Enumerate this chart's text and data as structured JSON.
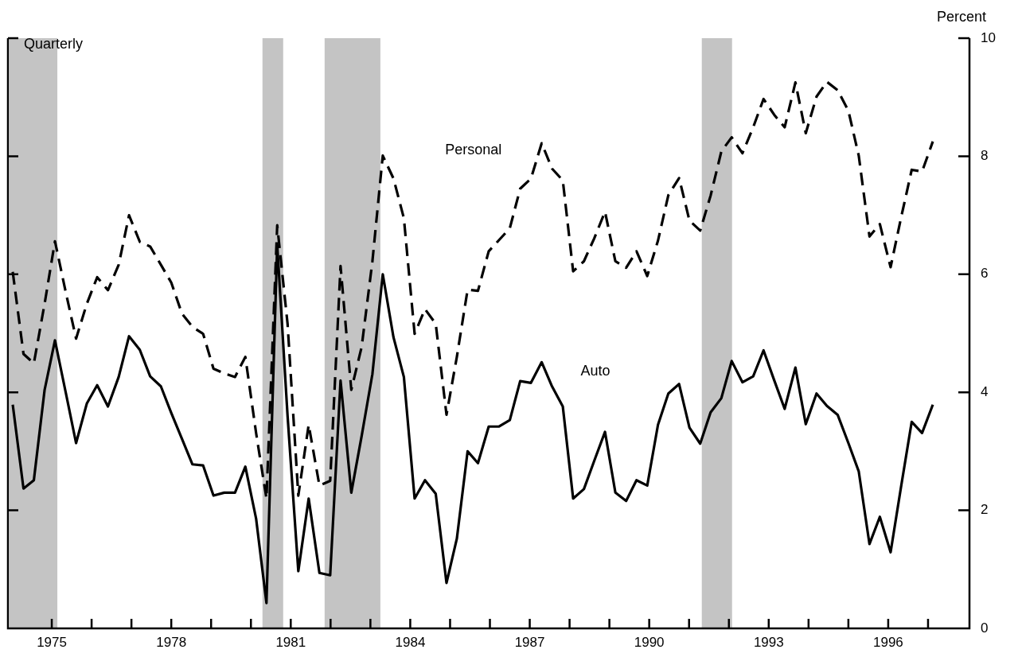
{
  "chart_data": {
    "type": "line",
    "annotations": [
      "Quarterly"
    ],
    "ylabel": "Percent",
    "tick_labels": "xy",
    "grid": false,
    "legend": false,
    "marker": "none",
    "x": [
      1974.02,
      1974.29,
      1974.55,
      1974.82,
      1975.08,
      1975.35,
      1975.61,
      1975.88,
      1976.14,
      1976.41,
      1976.68,
      1976.94,
      1977.21,
      1977.47,
      1977.74,
      1978.0,
      1978.27,
      1978.53,
      1978.8,
      1979.06,
      1979.33,
      1979.6,
      1979.86,
      1980.13,
      1980.39,
      1980.66,
      1980.92,
      1981.19,
      1981.45,
      1981.72,
      1981.99,
      1982.25,
      1982.52,
      1982.78,
      1983.05,
      1983.31,
      1983.58,
      1983.84,
      1984.11,
      1984.37,
      1984.64,
      1984.91,
      1985.17,
      1985.44,
      1985.7,
      1985.97,
      1986.23,
      1986.5,
      1986.76,
      1987.03,
      1987.3,
      1987.56,
      1987.83,
      1988.09,
      1988.36,
      1988.62,
      1988.89,
      1989.15,
      1989.42,
      1989.68,
      1989.95,
      1990.22,
      1990.48,
      1990.75,
      1991.01,
      1991.28,
      1991.54,
      1991.81,
      1992.07,
      1992.34,
      1992.61,
      1992.87,
      1993.14,
      1993.4,
      1993.67,
      1993.93,
      1994.2,
      1994.46,
      1994.73,
      1995.0,
      1995.26,
      1995.53,
      1995.79,
      1996.06,
      1996.32,
      1996.59,
      1996.85,
      1997.12
    ],
    "xlim": [
      1973.9,
      1998.04
    ],
    "xticks": [
      1975,
      {
        "value": 1976,
        "label": null
      },
      {
        "value": 1977,
        "label": null
      },
      1978,
      {
        "value": 1979,
        "label": null
      },
      {
        "value": 1980,
        "label": null
      },
      1981,
      {
        "value": 1982,
        "label": null
      },
      {
        "value": 1983,
        "label": null
      },
      1984,
      {
        "value": 1985,
        "label": null
      },
      {
        "value": 1986,
        "label": null
      },
      1987,
      {
        "value": 1988,
        "label": null
      },
      {
        "value": 1989,
        "label": null
      },
      1990,
      {
        "value": 1991,
        "label": null
      },
      {
        "value": 1992,
        "label": null
      },
      1993,
      {
        "value": 1994,
        "label": null
      },
      {
        "value": 1995,
        "label": null
      },
      1996,
      {
        "value": 1997,
        "label": null
      }
    ],
    "ylim": [
      0,
      10
    ],
    "yticks": [
      0,
      2,
      4,
      6,
      8,
      10
    ],
    "bands": [
      {
        "axis": "x",
        "from": 1973.94,
        "to": 1975.14,
        "color": "#c4c4c4"
      },
      {
        "axis": "x",
        "from": 1980.29,
        "to": 1980.81,
        "color": "#c4c4c4"
      },
      {
        "axis": "x",
        "from": 1981.85,
        "to": 1983.25,
        "color": "#c4c4c4"
      },
      {
        "axis": "x",
        "from": 1991.32,
        "to": 1992.08,
        "color": "#c4c4c4"
      }
    ],
    "series": [
      {
        "name": "Personal",
        "color": "#000000",
        "line_style": "dashed",
        "values": [
          6.04,
          4.65,
          4.49,
          5.5,
          6.56,
          5.7,
          4.91,
          5.5,
          5.95,
          5.73,
          6.16,
          7.0,
          6.55,
          6.47,
          6.16,
          5.86,
          5.33,
          5.11,
          4.99,
          4.4,
          4.32,
          4.26,
          4.6,
          3.31,
          2.2,
          6.83,
          5.16,
          2.25,
          3.45,
          2.42,
          2.5,
          6.14,
          4.04,
          4.77,
          6.22,
          8.01,
          7.62,
          6.95,
          4.99,
          5.41,
          5.16,
          3.62,
          4.6,
          5.74,
          5.72,
          6.39,
          6.58,
          6.78,
          7.45,
          7.62,
          8.22,
          7.79,
          7.59,
          6.05,
          6.22,
          6.61,
          7.06,
          6.22,
          6.11,
          6.39,
          5.97,
          6.57,
          7.34,
          7.63,
          6.91,
          6.74,
          7.33,
          8.08,
          8.32,
          8.05,
          8.49,
          8.97,
          8.7,
          8.49,
          9.25,
          8.39,
          9.01,
          9.26,
          9.12,
          8.77,
          8.01,
          6.64,
          6.85,
          6.12,
          6.95,
          7.77,
          7.74,
          8.25
        ]
      },
      {
        "name": "Auto",
        "color": "#000000",
        "line_style": "solid",
        "values": [
          3.79,
          2.37,
          2.51,
          4.04,
          4.88,
          4.0,
          3.14,
          3.81,
          4.12,
          3.76,
          4.26,
          4.95,
          4.72,
          4.27,
          4.1,
          3.65,
          3.21,
          2.78,
          2.76,
          2.25,
          2.3,
          2.3,
          2.74,
          1.86,
          0.43,
          6.5,
          3.6,
          0.97,
          2.2,
          0.94,
          0.9,
          4.2,
          2.3,
          3.26,
          4.31,
          6.0,
          4.93,
          4.26,
          2.2,
          2.51,
          2.28,
          0.77,
          1.52,
          3.0,
          2.8,
          3.42,
          3.42,
          3.53,
          4.19,
          4.16,
          4.51,
          4.1,
          3.76,
          2.2,
          2.36,
          2.84,
          3.33,
          2.3,
          2.16,
          2.51,
          2.42,
          3.45,
          3.98,
          4.14,
          3.4,
          3.13,
          3.66,
          3.9,
          4.53,
          4.17,
          4.27,
          4.71,
          4.2,
          3.72,
          4.42,
          3.46,
          3.98,
          3.77,
          3.62,
          3.14,
          2.66,
          1.43,
          1.89,
          1.29,
          2.39,
          3.5,
          3.31,
          3.79
        ]
      }
    ]
  }
}
